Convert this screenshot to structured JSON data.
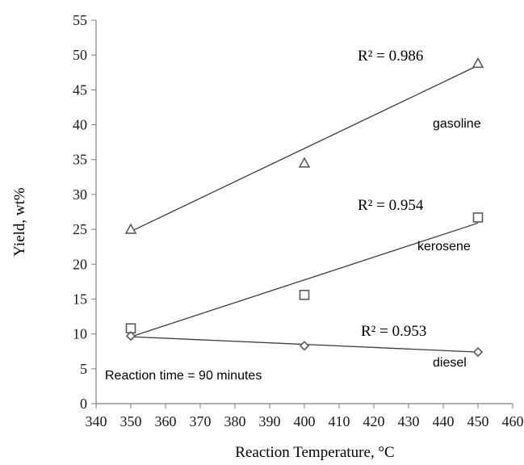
{
  "chart_data": {
    "type": "scatter",
    "title": "",
    "xlabel": "Reaction Temperature, °C",
    "ylabel": "Yield, wt%",
    "xlim": [
      340,
      460
    ],
    "ylim": [
      0,
      55
    ],
    "x_ticks": [
      340,
      350,
      360,
      370,
      380,
      390,
      400,
      410,
      420,
      430,
      440,
      450,
      460
    ],
    "y_ticks": [
      0,
      5,
      10,
      15,
      20,
      25,
      30,
      35,
      40,
      45,
      50,
      55
    ],
    "grid": false,
    "series": [
      {
        "name": "gasoline",
        "marker": "triangle",
        "x": [
          350,
          400,
          450
        ],
        "y": [
          25.0,
          34.5,
          48.8
        ],
        "trendline": {
          "y_start": 24.7,
          "y_end": 48.5,
          "r2_label": "R² = 0.986"
        }
      },
      {
        "name": "kerosene",
        "marker": "square",
        "x": [
          350,
          400,
          450
        ],
        "y": [
          10.8,
          15.6,
          26.7
        ],
        "trendline": {
          "y_start": 9.6,
          "y_end": 25.9,
          "r2_label": "R² = 0.954"
        }
      },
      {
        "name": "diesel",
        "marker": "diamond",
        "x": [
          350,
          400,
          450
        ],
        "y": [
          9.7,
          8.3,
          7.4
        ],
        "trendline": {
          "y_start": 9.6,
          "y_end": 7.4,
          "r2_label": "R² = 0.953"
        }
      }
    ],
    "annotations": [
      "Reaction time = 90 minutes"
    ]
  },
  "colors": {
    "line": "#3c3c3c",
    "marker": "#5a5a5a",
    "text": "#1a1a1a"
  }
}
